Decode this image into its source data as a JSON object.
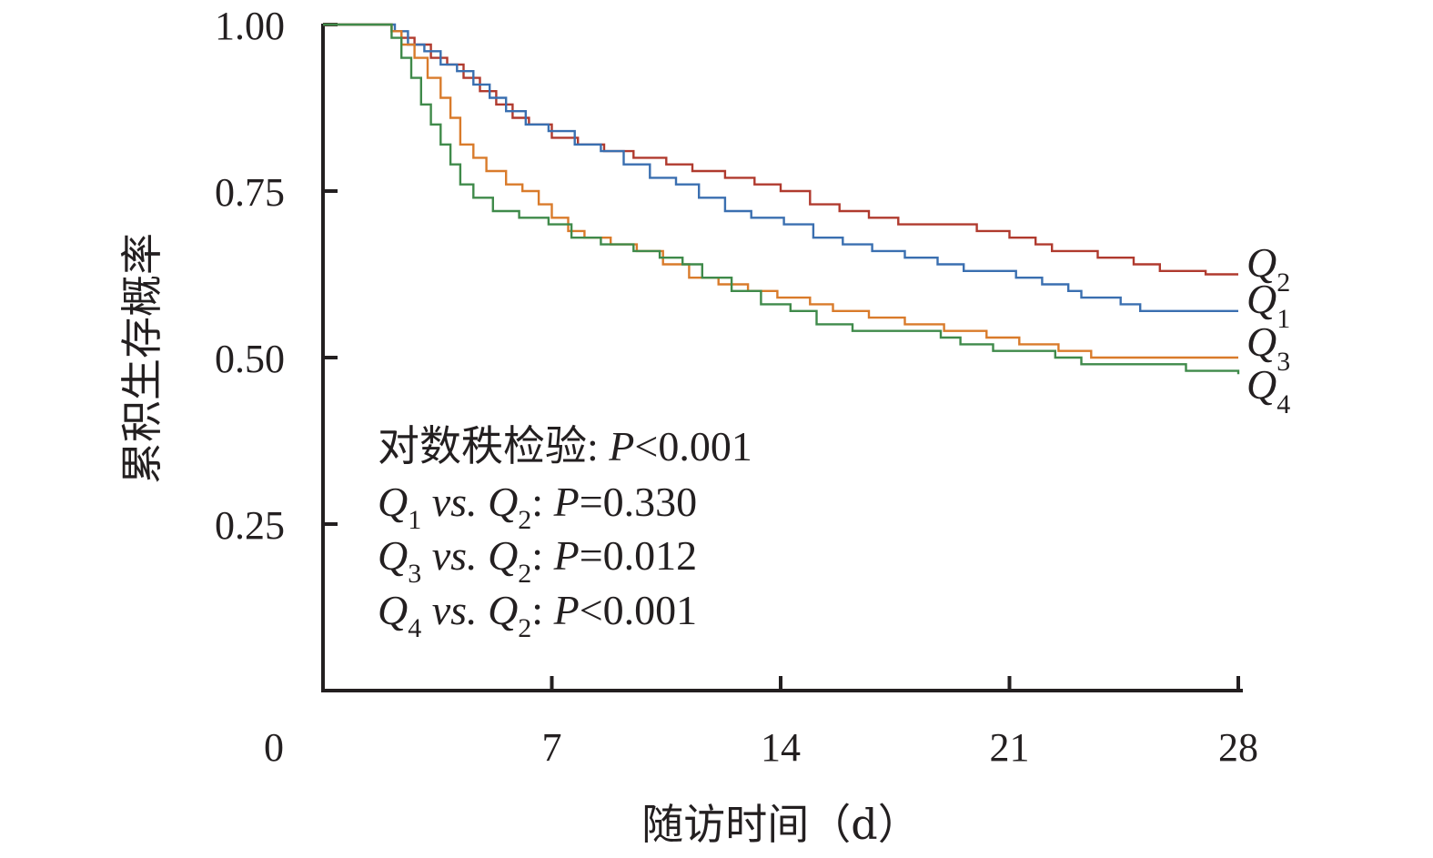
{
  "chart_data": {
    "type": "line",
    "title": "",
    "xlabel": "随访时间（d）",
    "ylabel": "累积生存概率",
    "xlim": [
      0,
      28
    ],
    "ylim": [
      0,
      1
    ],
    "x_ticks": [
      {
        "value": 0,
        "label": "0"
      },
      {
        "value": 7,
        "label": "7"
      },
      {
        "value": 14,
        "label": "14"
      },
      {
        "value": 21,
        "label": "21"
      },
      {
        "value": 28,
        "label": "28"
      }
    ],
    "y_ticks": [
      {
        "value": 1.0,
        "label": "1.00"
      },
      {
        "value": 0.75,
        "label": "0.75"
      },
      {
        "value": 0.5,
        "label": "0.50"
      },
      {
        "value": 0.25,
        "label": "0.25"
      }
    ],
    "grid": false,
    "legend": "right end of curves",
    "series": [
      {
        "name": "Q2",
        "label_main": "Q",
        "label_sub": "2",
        "color": "#b03a2e",
        "points": [
          [
            0,
            1.0
          ],
          [
            1.9,
            1.0
          ],
          [
            2.1,
            0.99
          ],
          [
            2.4,
            0.98
          ],
          [
            2.8,
            0.97
          ],
          [
            3.3,
            0.95
          ],
          [
            3.8,
            0.94
          ],
          [
            4.3,
            0.92
          ],
          [
            4.8,
            0.9
          ],
          [
            5.3,
            0.88
          ],
          [
            5.8,
            0.86
          ],
          [
            6.3,
            0.85
          ],
          [
            7.0,
            0.83
          ],
          [
            7.8,
            0.82
          ],
          [
            8.6,
            0.81
          ],
          [
            9.5,
            0.8
          ],
          [
            10.5,
            0.79
          ],
          [
            11.3,
            0.78
          ],
          [
            12.3,
            0.77
          ],
          [
            13.2,
            0.76
          ],
          [
            14.0,
            0.75
          ],
          [
            14.9,
            0.73
          ],
          [
            15.8,
            0.72
          ],
          [
            16.7,
            0.71
          ],
          [
            17.6,
            0.7
          ],
          [
            18.8,
            0.7
          ],
          [
            20.0,
            0.69
          ],
          [
            21.0,
            0.68
          ],
          [
            21.8,
            0.67
          ],
          [
            22.3,
            0.66
          ],
          [
            23.7,
            0.65
          ],
          [
            24.8,
            0.64
          ],
          [
            25.6,
            0.63
          ],
          [
            26.6,
            0.63
          ],
          [
            27.0,
            0.625
          ],
          [
            28.0,
            0.625
          ]
        ]
      },
      {
        "name": "Q1",
        "label_main": "Q",
        "label_sub": "1",
        "color": "#3a6fb0",
        "points": [
          [
            0,
            1.0
          ],
          [
            1.9,
            1.0
          ],
          [
            2.2,
            0.99
          ],
          [
            2.6,
            0.97
          ],
          [
            3.1,
            0.96
          ],
          [
            3.6,
            0.94
          ],
          [
            4.1,
            0.93
          ],
          [
            4.6,
            0.91
          ],
          [
            5.1,
            0.89
          ],
          [
            5.6,
            0.87
          ],
          [
            6.2,
            0.85
          ],
          [
            6.9,
            0.84
          ],
          [
            7.7,
            0.82
          ],
          [
            8.5,
            0.81
          ],
          [
            9.2,
            0.79
          ],
          [
            10.0,
            0.77
          ],
          [
            10.8,
            0.76
          ],
          [
            11.5,
            0.74
          ],
          [
            12.3,
            0.72
          ],
          [
            13.1,
            0.71
          ],
          [
            14.1,
            0.7
          ],
          [
            15.0,
            0.68
          ],
          [
            15.9,
            0.67
          ],
          [
            16.8,
            0.66
          ],
          [
            17.8,
            0.65
          ],
          [
            18.8,
            0.64
          ],
          [
            19.6,
            0.63
          ],
          [
            21.2,
            0.62
          ],
          [
            22.0,
            0.61
          ],
          [
            22.8,
            0.6
          ],
          [
            23.2,
            0.59
          ],
          [
            24.4,
            0.58
          ],
          [
            25.0,
            0.57
          ],
          [
            26.5,
            0.57
          ],
          [
            28.0,
            0.57
          ]
        ]
      },
      {
        "name": "Q3",
        "label_main": "Q",
        "label_sub": "3",
        "color": "#d97b2b",
        "points": [
          [
            0,
            1.0
          ],
          [
            1.9,
            1.0
          ],
          [
            2.1,
            0.99
          ],
          [
            2.4,
            0.97
          ],
          [
            2.8,
            0.95
          ],
          [
            3.2,
            0.92
          ],
          [
            3.6,
            0.89
          ],
          [
            3.9,
            0.86
          ],
          [
            4.2,
            0.82
          ],
          [
            4.6,
            0.8
          ],
          [
            5.0,
            0.78
          ],
          [
            5.6,
            0.76
          ],
          [
            6.1,
            0.75
          ],
          [
            6.6,
            0.73
          ],
          [
            7.0,
            0.71
          ],
          [
            7.5,
            0.69
          ],
          [
            8.0,
            0.68
          ],
          [
            8.8,
            0.67
          ],
          [
            9.6,
            0.66
          ],
          [
            10.4,
            0.64
          ],
          [
            11.2,
            0.62
          ],
          [
            12.1,
            0.61
          ],
          [
            13.0,
            0.6
          ],
          [
            13.9,
            0.59
          ],
          [
            14.9,
            0.58
          ],
          [
            15.6,
            0.57
          ],
          [
            16.7,
            0.56
          ],
          [
            17.8,
            0.55
          ],
          [
            19.0,
            0.54
          ],
          [
            20.3,
            0.53
          ],
          [
            21.3,
            0.52
          ],
          [
            22.5,
            0.51
          ],
          [
            23.5,
            0.5
          ],
          [
            24.4,
            0.5
          ],
          [
            25.5,
            0.5
          ],
          [
            26.5,
            0.5
          ],
          [
            28.0,
            0.5
          ]
        ]
      },
      {
        "name": "Q4",
        "label_main": "Q",
        "label_sub": "4",
        "color": "#3f8a4a",
        "points": [
          [
            0,
            1.0
          ],
          [
            1.9,
            1.0
          ],
          [
            2.1,
            0.98
          ],
          [
            2.4,
            0.95
          ],
          [
            2.7,
            0.92
          ],
          [
            3.0,
            0.88
          ],
          [
            3.3,
            0.85
          ],
          [
            3.6,
            0.82
          ],
          [
            3.9,
            0.79
          ],
          [
            4.2,
            0.76
          ],
          [
            4.6,
            0.74
          ],
          [
            5.2,
            0.72
          ],
          [
            6.0,
            0.71
          ],
          [
            6.9,
            0.7
          ],
          [
            7.6,
            0.68
          ],
          [
            8.5,
            0.67
          ],
          [
            9.5,
            0.66
          ],
          [
            10.3,
            0.65
          ],
          [
            11.0,
            0.64
          ],
          [
            11.6,
            0.62
          ],
          [
            12.5,
            0.6
          ],
          [
            13.4,
            0.58
          ],
          [
            14.3,
            0.57
          ],
          [
            15.1,
            0.55
          ],
          [
            16.2,
            0.54
          ],
          [
            17.5,
            0.54
          ],
          [
            18.9,
            0.53
          ],
          [
            19.5,
            0.52
          ],
          [
            20.5,
            0.51
          ],
          [
            21.4,
            0.51
          ],
          [
            22.4,
            0.5
          ],
          [
            23.2,
            0.49
          ],
          [
            24.2,
            0.49
          ],
          [
            25.5,
            0.49
          ],
          [
            26.4,
            0.48
          ],
          [
            27.3,
            0.48
          ],
          [
            28.0,
            0.475
          ]
        ]
      }
    ],
    "annotations": [
      {
        "parts": [
          {
            "t": "对数秩检验: ",
            "style": "normal"
          },
          {
            "t": "P",
            "style": "italic"
          },
          {
            "t": "<0.001",
            "style": "normal"
          }
        ]
      },
      {
        "parts": [
          {
            "t": "Q",
            "style": "italic"
          },
          {
            "t": "1",
            "style": "sub"
          },
          {
            "t": " vs.",
            "style": "italic"
          },
          {
            "t": " Q",
            "style": "italic"
          },
          {
            "t": "2",
            "style": "sub"
          },
          {
            "t": ": ",
            "style": "normal"
          },
          {
            "t": "P",
            "style": "italic"
          },
          {
            "t": "=0.330",
            "style": "normal"
          }
        ]
      },
      {
        "parts": [
          {
            "t": "Q",
            "style": "italic"
          },
          {
            "t": "3",
            "style": "sub"
          },
          {
            "t": " vs.",
            "style": "italic"
          },
          {
            "t": " Q",
            "style": "italic"
          },
          {
            "t": "2",
            "style": "sub"
          },
          {
            "t": ": ",
            "style": "normal"
          },
          {
            "t": "P",
            "style": "italic"
          },
          {
            "t": "=0.012",
            "style": "normal"
          }
        ]
      },
      {
        "parts": [
          {
            "t": "Q",
            "style": "italic"
          },
          {
            "t": "4",
            "style": "sub"
          },
          {
            "t": " vs.",
            "style": "italic"
          },
          {
            "t": " Q",
            "style": "italic"
          },
          {
            "t": "2",
            "style": "sub"
          },
          {
            "t": ": ",
            "style": "normal"
          },
          {
            "t": "P",
            "style": "italic"
          },
          {
            "t": "<0.001",
            "style": "normal"
          }
        ]
      }
    ]
  }
}
